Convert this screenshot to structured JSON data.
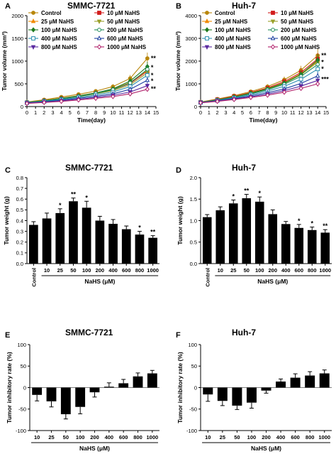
{
  "panels": [
    {
      "letter": "A",
      "title": "SMMC-7721",
      "chart_data": {
        "type": "line",
        "xlabel": "Time(day)",
        "ylabel": "Tumor volume (mm³)",
        "xlim": [
          0,
          15
        ],
        "ylim": [
          0,
          2000
        ],
        "x_ticks": [
          "0",
          "1",
          "2",
          "3",
          "4",
          "5",
          "6",
          "7",
          "8",
          "9",
          "10",
          "11",
          "12",
          "13",
          "14",
          "15"
        ],
        "y_ticks": [
          "0",
          "500",
          "1000",
          "1500",
          "2000"
        ],
        "x": [
          0,
          2,
          4,
          6,
          8,
          10,
          12,
          14
        ],
        "series": [
          {
            "name": "Control",
            "color": "#b8860b",
            "marker": "circle",
            "values": [
              100,
              150,
              210,
              270,
              340,
              440,
              620,
              1060
            ]
          },
          {
            "name": "10 μM NaHS",
            "color": "#d11c1c",
            "marker": "square",
            "values": [
              90,
              130,
              180,
              230,
              290,
              370,
              510,
              780
            ]
          },
          {
            "name": "25 μM NaHS",
            "color": "#f08a00",
            "marker": "triangle-up",
            "values": [
              95,
              135,
              185,
              240,
              300,
              380,
              530,
              800
            ]
          },
          {
            "name": "50 μM NaHS",
            "color": "#9aa02a",
            "marker": "triangle-down",
            "values": [
              90,
              125,
              170,
              220,
              280,
              350,
              480,
              740
            ]
          },
          {
            "name": "100 μM NaHS",
            "color": "#1e7a1e",
            "marker": "diamond",
            "values": [
              95,
              130,
              180,
              235,
              300,
              390,
              560,
              880
            ]
          },
          {
            "name": "200 μM NaHS",
            "color": "#1e8c5a",
            "marker": "circle-open",
            "values": [
              90,
              125,
              170,
              225,
              290,
              370,
              520,
              820
            ]
          },
          {
            "name": "400 μM NaHS",
            "color": "#2a8fb0",
            "marker": "square-open",
            "values": [
              85,
              115,
              155,
              200,
              255,
              320,
              440,
              690
            ]
          },
          {
            "name": "600 μM NaHS",
            "color": "#1c3fa0",
            "marker": "triangle-up-open",
            "values": [
              80,
              105,
              140,
              180,
              225,
              280,
              380,
              580
            ]
          },
          {
            "name": "800 μM NaHS",
            "color": "#5a2aa0",
            "marker": "triangle-down",
            "values": [
              75,
              95,
              125,
              160,
              200,
              250,
              320,
              460
            ]
          },
          {
            "name": "1000 μM NaHS",
            "color": "#b0206a",
            "marker": "diamond-open",
            "values": [
              70,
              90,
              115,
              145,
              180,
              220,
              280,
              380
            ]
          }
        ],
        "annotations": [
          {
            "text": "**",
            "x": 14,
            "y": 1060
          },
          {
            "text": "*",
            "x": 14,
            "y": 860
          },
          {
            "text": "*",
            "x": 14,
            "y": 690
          },
          {
            "text": "*",
            "x": 14,
            "y": 560
          },
          {
            "text": "**",
            "x": 14,
            "y": 390
          }
        ]
      }
    },
    {
      "letter": "B",
      "title": "Huh-7",
      "chart_data": {
        "type": "line",
        "xlabel": "Time(day)",
        "ylabel": "Tumor volume (mm³)",
        "xlim": [
          0,
          15
        ],
        "ylim": [
          0,
          4000
        ],
        "x_ticks": [
          "0",
          "1",
          "2",
          "3",
          "4",
          "5",
          "6",
          "7",
          "8",
          "9",
          "10",
          "11",
          "12",
          "13",
          "14",
          "15"
        ],
        "y_ticks": [
          "0",
          "1000",
          "2000",
          "3000",
          "4000"
        ],
        "x": [
          0,
          2,
          4,
          6,
          8,
          10,
          12,
          14
        ],
        "series": [
          {
            "name": "Control",
            "color": "#b8860b",
            "marker": "circle",
            "values": [
              200,
              330,
              480,
              660,
              880,
              1180,
              1600,
              2250
            ]
          },
          {
            "name": "10 μM NaHS",
            "color": "#d11c1c",
            "marker": "square",
            "values": [
              195,
              310,
              450,
              620,
              820,
              1100,
              1500,
              2100
            ]
          },
          {
            "name": "25 μM NaHS",
            "color": "#f08a00",
            "marker": "triangle-up",
            "values": [
              190,
              300,
              430,
              600,
              790,
              1050,
              1440,
              2000
            ]
          },
          {
            "name": "50 μM NaHS",
            "color": "#9aa02a",
            "marker": "triangle-down",
            "values": [
              185,
              290,
              420,
              580,
              770,
              1020,
              1400,
              1950
            ]
          },
          {
            "name": "100 μM NaHS",
            "color": "#1e7a1e",
            "marker": "diamond",
            "values": [
              190,
              295,
              425,
              590,
              780,
              1040,
              1420,
              2050
            ]
          },
          {
            "name": "200 μM NaHS",
            "color": "#1e8c5a",
            "marker": "circle-open",
            "values": [
              185,
              285,
              410,
              560,
              740,
              980,
              1330,
              1850
            ]
          },
          {
            "name": "400 μM NaHS",
            "color": "#2a8fb0",
            "marker": "square-open",
            "values": [
              180,
              270,
              380,
              520,
              680,
              890,
              1200,
              1650
            ]
          },
          {
            "name": "600 μM NaHS",
            "color": "#1c3fa0",
            "marker": "triangle-up-open",
            "values": [
              175,
              255,
              350,
              470,
              610,
              780,
              1020,
              1350
            ]
          },
          {
            "name": "800 μM NaHS",
            "color": "#5a2aa0",
            "marker": "triangle-down",
            "values": [
              170,
              240,
              330,
              430,
              550,
              700,
              900,
              1150
            ]
          },
          {
            "name": "1000 μM NaHS",
            "color": "#b0206a",
            "marker": "diamond-open",
            "values": [
              165,
              230,
              310,
              400,
              500,
              630,
              800,
              1000
            ]
          }
        ],
        "annotations": [
          {
            "text": "**",
            "x": 14,
            "y": 2250
          },
          {
            "text": "*",
            "x": 14,
            "y": 1950
          },
          {
            "text": "*",
            "x": 14,
            "y": 1650
          },
          {
            "text": "***",
            "x": 14,
            "y": 1200
          }
        ]
      }
    },
    {
      "letter": "C",
      "title": "SMMC-7721",
      "chart_data": {
        "type": "bar",
        "ylabel": "Tumor weight (g)",
        "xlabel": "NaHS (μM)",
        "ylim": [
          0,
          0.8
        ],
        "y_ticks": [
          "0.0",
          "0.1",
          "0.2",
          "0.3",
          "0.4",
          "0.5",
          "0.6",
          "0.7",
          "0.8"
        ],
        "categories": [
          "Control",
          "10",
          "25",
          "50",
          "100",
          "200",
          "400",
          "600",
          "800",
          "1000"
        ],
        "values": [
          0.36,
          0.42,
          0.47,
          0.58,
          0.52,
          0.4,
          0.37,
          0.32,
          0.27,
          0.24
        ],
        "errors": [
          0.03,
          0.05,
          0.04,
          0.03,
          0.06,
          0.04,
          0.04,
          0.03,
          0.03,
          0.02
        ],
        "significance": [
          "",
          "",
          "*",
          "**",
          "*",
          "",
          "",
          "",
          "*",
          "**"
        ]
      }
    },
    {
      "letter": "D",
      "title": "Huh-7",
      "chart_data": {
        "type": "bar",
        "ylabel": "Tumor weight (g)",
        "xlabel": "NaHS (μM)",
        "ylim": [
          0,
          2.0
        ],
        "y_ticks": [
          "0.0",
          "0.5",
          "1.0",
          "1.5",
          "2.0"
        ],
        "categories": [
          "Control",
          "10",
          "25",
          "50",
          "100",
          "200",
          "400",
          "600",
          "800",
          "1000"
        ],
        "values": [
          1.08,
          1.24,
          1.4,
          1.52,
          1.44,
          1.15,
          0.92,
          0.83,
          0.78,
          0.72
        ],
        "errors": [
          0.06,
          0.08,
          0.08,
          0.09,
          0.11,
          0.1,
          0.06,
          0.08,
          0.07,
          0.07
        ],
        "significance": [
          "",
          "",
          "*",
          "**",
          "*",
          "",
          "",
          "*",
          "*",
          "**"
        ]
      }
    },
    {
      "letter": "E",
      "title": "SMMC-7721",
      "chart_data": {
        "type": "bar",
        "ylabel": "Tumor inhibitory rate (%)",
        "xlabel": "NaHS (μM)",
        "ylim": [
          -100,
          100
        ],
        "y_ticks": [
          "-100",
          "-50",
          "0",
          "50",
          "100"
        ],
        "categories": [
          "10",
          "25",
          "50",
          "100",
          "200",
          "400",
          "600",
          "800",
          "1000"
        ],
        "values": [
          -17,
          -32,
          -62,
          -45,
          -11,
          2,
          10,
          26,
          33
        ],
        "errors": [
          14,
          13,
          11,
          16,
          11,
          9,
          9,
          8,
          7
        ]
      }
    },
    {
      "letter": "F",
      "title": "Huh-7",
      "chart_data": {
        "type": "bar",
        "ylabel": "Tumor inhibitory rate (%)",
        "xlabel": "NaHS (μM)",
        "ylim": [
          -100,
          100
        ],
        "y_ticks": [
          "-100",
          "-50",
          "0",
          "50",
          "100"
        ],
        "categories": [
          "10",
          "25",
          "50",
          "100",
          "200",
          "400",
          "600",
          "800",
          "1000"
        ],
        "values": [
          -16,
          -31,
          -42,
          -35,
          -7,
          14,
          23,
          28,
          33
        ],
        "errors": [
          16,
          11,
          9,
          13,
          6,
          6,
          9,
          9,
          8
        ]
      }
    }
  ]
}
